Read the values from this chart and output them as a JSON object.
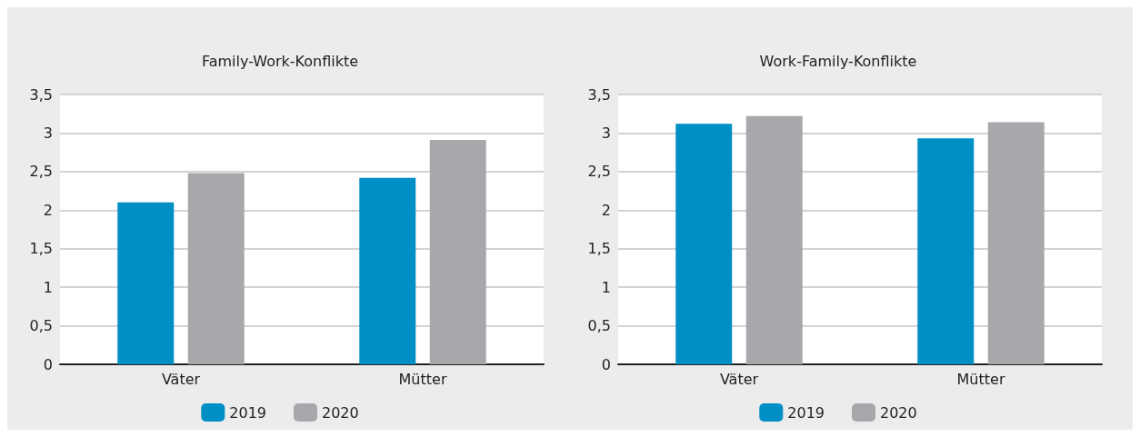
{
  "chart_data": [
    {
      "type": "bar",
      "title": "Family-Work-Konflikte",
      "categories": [
        "Väter",
        "Mütter"
      ],
      "series": [
        {
          "name": "2019",
          "color": "#008fc5",
          "values": [
            2.1,
            2.42
          ]
        },
        {
          "name": "2020",
          "color": "#a7a8ab",
          "values": [
            2.48,
            2.91
          ]
        }
      ],
      "ylim": [
        0,
        3.5
      ],
      "yticks": [
        0,
        {
          "value": 0.5,
          "label": "0,5"
        },
        1,
        {
          "value": 1.5,
          "label": "1,5"
        },
        2,
        {
          "value": 2.5,
          "label": "2,5"
        },
        3,
        {
          "value": 3.5,
          "label": "3,5"
        }
      ],
      "grid": "y",
      "legend": "bottom"
    },
    {
      "type": "bar",
      "title": "Work-Family-Konflikte",
      "categories": [
        "Väter",
        "Mütter"
      ],
      "series": [
        {
          "name": "2019",
          "color": "#008fc5",
          "values": [
            3.12,
            2.93
          ]
        },
        {
          "name": "2020",
          "color": "#a7a8ab",
          "values": [
            3.22,
            3.14
          ]
        }
      ],
      "ylim": [
        0,
        3.5
      ],
      "yticks": [
        0,
        {
          "value": 0.5,
          "label": "0,5"
        },
        1,
        {
          "value": 1.5,
          "label": "1,5"
        },
        2,
        {
          "value": 2.5,
          "label": "2,5"
        },
        3,
        {
          "value": 3.5,
          "label": "3,5"
        }
      ],
      "grid": "y",
      "legend": "bottom"
    }
  ]
}
